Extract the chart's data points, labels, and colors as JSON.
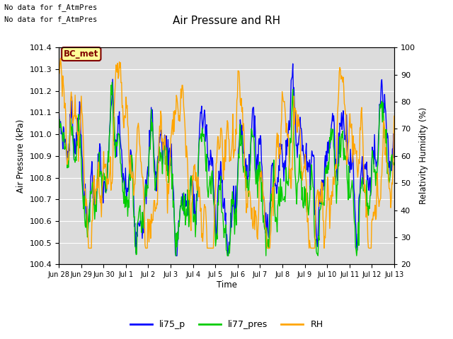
{
  "title": "Air Pressure and RH",
  "xlabel": "Time",
  "ylabel_left": "Air Pressure (kPa)",
  "ylabel_right": "Relativity Humidity (%)",
  "ylim_left": [
    100.4,
    101.4
  ],
  "ylim_right": [
    20,
    100
  ],
  "yticks_left": [
    100.4,
    100.5,
    100.6,
    100.7,
    100.8,
    100.9,
    101.0,
    101.1,
    101.2,
    101.3,
    101.4
  ],
  "yticks_right": [
    20,
    30,
    40,
    50,
    60,
    70,
    80,
    90,
    100
  ],
  "annotation_line1": "No data for f_AtmPres",
  "annotation_line2": "No data for f_AtmPres",
  "box_label": "BC_met",
  "box_color": "#FFFF99",
  "box_edge_color": "#800000",
  "box_text_color": "#800000",
  "color_li75": "#0000FF",
  "color_li77": "#00CC00",
  "color_rh": "#FFA500",
  "line_width": 1.0,
  "bg_color": "#DCDCDC",
  "grid_color": "#FFFFFF",
  "n_points": 600,
  "time_start": 0,
  "time_end": 15,
  "xtick_labels": [
    "Jun 28",
    "Jun 29",
    "Jun 30",
    "Jul 1",
    "Jul 2",
    "Jul 3",
    "Jul 4",
    "Jul 5",
    "Jul 6",
    "Jul 7",
    "Jul 8",
    "Jul 9",
    "Jul 10",
    "Jul 11",
    "Jul 12",
    "Jul 13"
  ],
  "xtick_positions": [
    0,
    1,
    2,
    3,
    4,
    5,
    6,
    7,
    8,
    9,
    10,
    11,
    12,
    13,
    14,
    15
  ]
}
